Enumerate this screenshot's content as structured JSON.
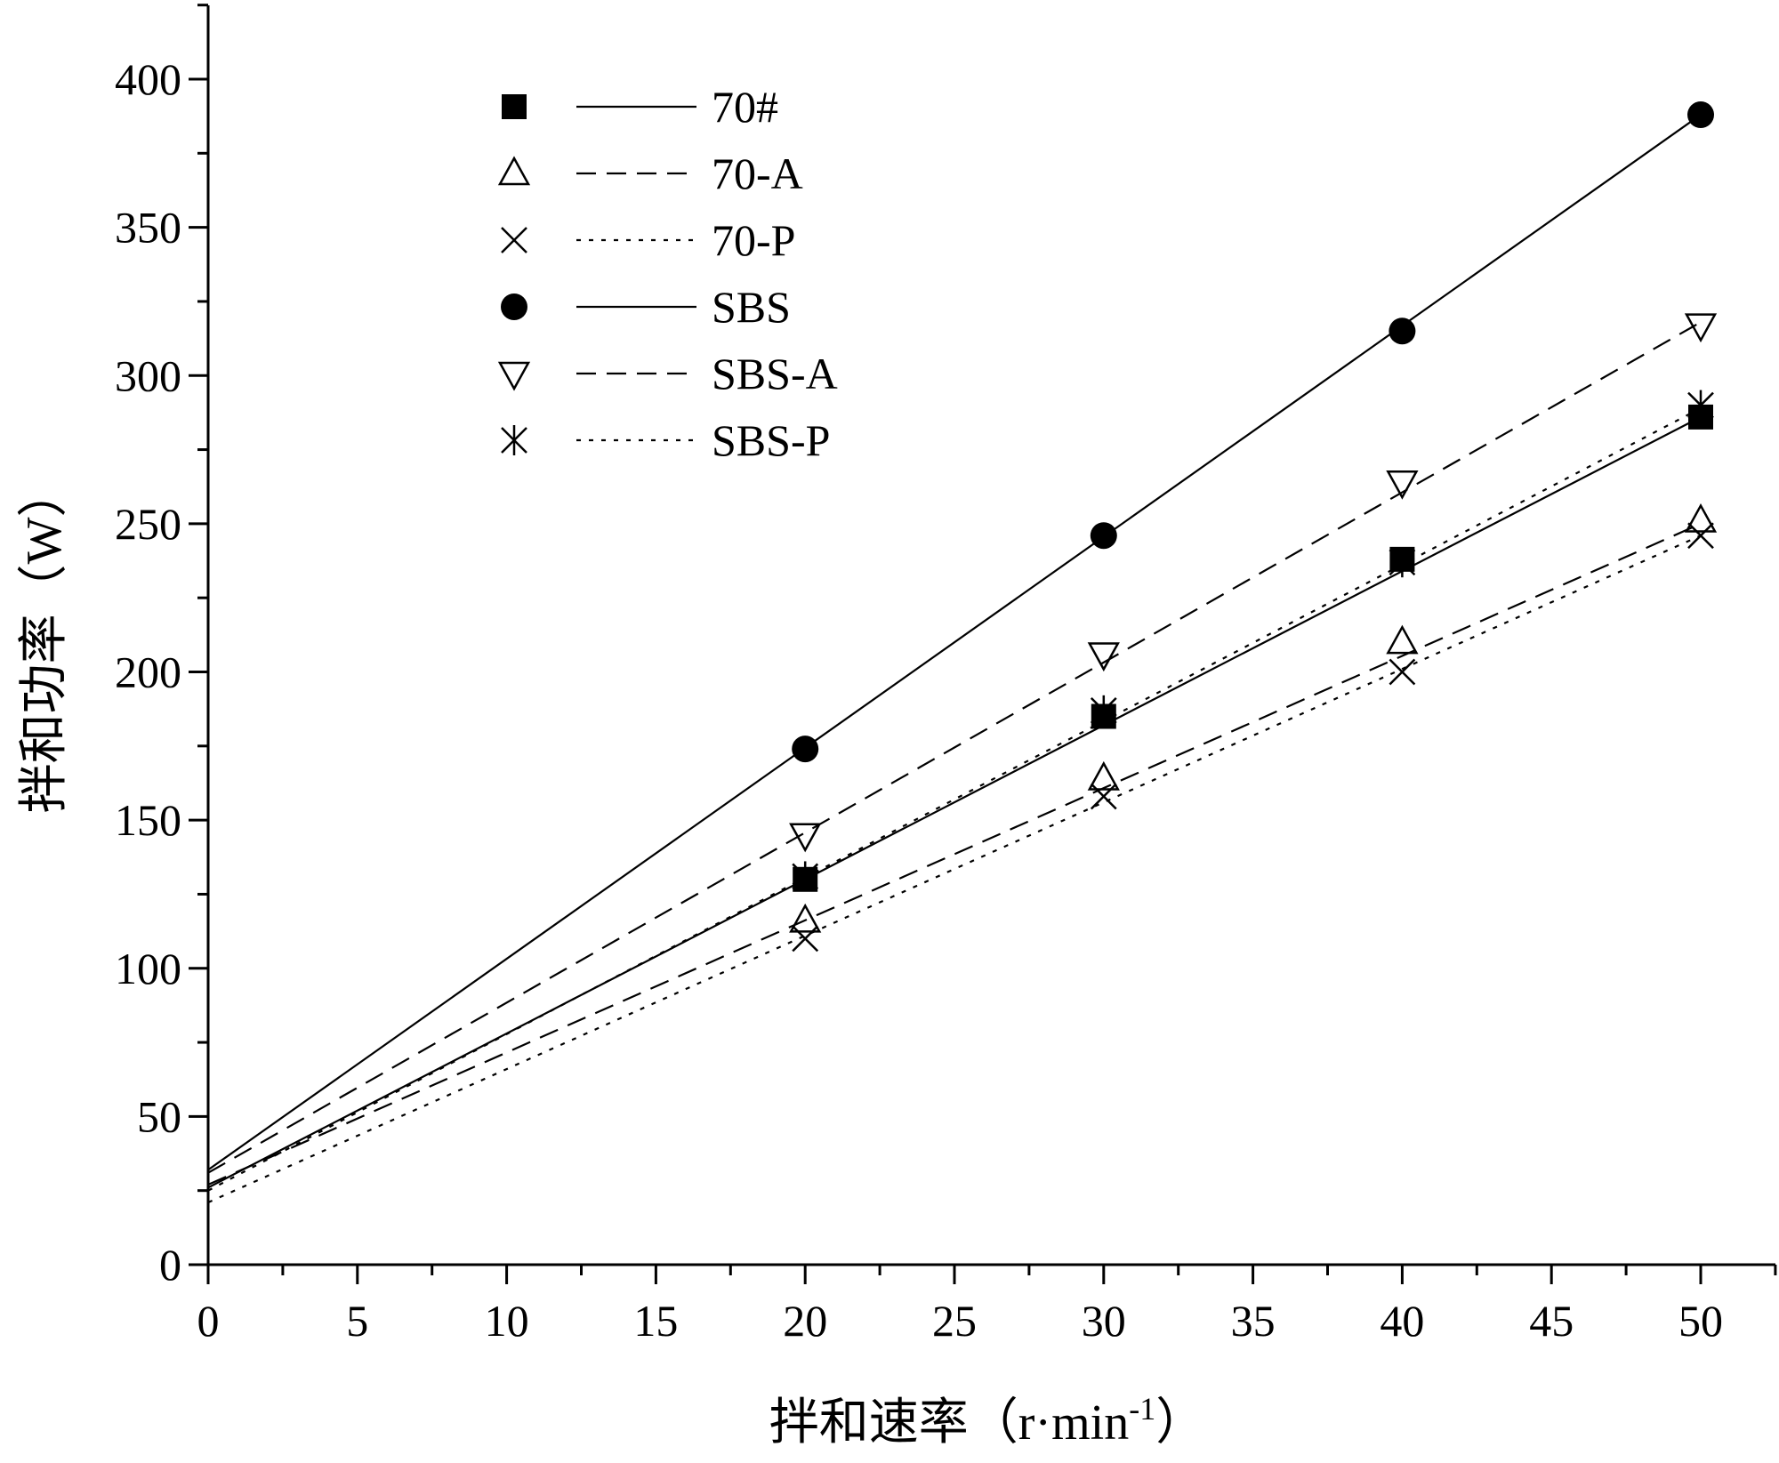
{
  "chart_data": {
    "type": "scatter",
    "xlabel": "拌和速率（r·min",
    "xlabel_sup": "-1",
    "xlabel_close": "）",
    "ylabel": "拌和功率（W）",
    "xlim": [
      0,
      52.5
    ],
    "ylim": [
      0,
      425
    ],
    "xticks": [
      0,
      5,
      10,
      15,
      20,
      25,
      30,
      35,
      40,
      45,
      50
    ],
    "yticks": [
      0,
      50,
      100,
      150,
      200,
      250,
      300,
      350,
      400
    ],
    "legend_position": "top-left",
    "series": [
      {
        "name": "70#",
        "marker": "filled-square",
        "line": "solid",
        "x": [
          20,
          30,
          40,
          50
        ],
        "y": [
          130,
          185,
          238,
          286
        ],
        "fit": {
          "x": [
            0,
            50
          ],
          "y": [
            26,
            286
          ]
        }
      },
      {
        "name": "70-A",
        "marker": "open-triangle-up",
        "line": "dashed",
        "x": [
          20,
          30,
          40,
          50
        ],
        "y": [
          116,
          164,
          210,
          251
        ],
        "fit": {
          "x": [
            0,
            50
          ],
          "y": [
            27,
            250
          ]
        }
      },
      {
        "name": "70-P",
        "marker": "x-cross",
        "line": "dotted",
        "x": [
          20,
          30,
          40,
          50
        ],
        "y": [
          110,
          158,
          200,
          246
        ],
        "fit": {
          "x": [
            0,
            50
          ],
          "y": [
            21,
            246
          ]
        }
      },
      {
        "name": "SBS",
        "marker": "filled-circle",
        "line": "solid",
        "x": [
          20,
          30,
          40,
          50
        ],
        "y": [
          174,
          246,
          315,
          388
        ],
        "fit": {
          "x": [
            0,
            50
          ],
          "y": [
            32,
            388
          ]
        }
      },
      {
        "name": "SBS-A",
        "marker": "open-triangle-down",
        "line": "dashed",
        "x": [
          20,
          30,
          40,
          50
        ],
        "y": [
          145,
          206,
          264,
          317
        ],
        "fit": {
          "x": [
            0,
            50
          ],
          "y": [
            31,
            318
          ]
        }
      },
      {
        "name": "SBS-P",
        "marker": "asterisk",
        "line": "dotted",
        "x": [
          20,
          30,
          40,
          50
        ],
        "y": [
          131,
          187,
          237,
          290
        ],
        "fit": {
          "x": [
            0,
            50
          ],
          "y": [
            25,
            289
          ]
        }
      }
    ]
  }
}
